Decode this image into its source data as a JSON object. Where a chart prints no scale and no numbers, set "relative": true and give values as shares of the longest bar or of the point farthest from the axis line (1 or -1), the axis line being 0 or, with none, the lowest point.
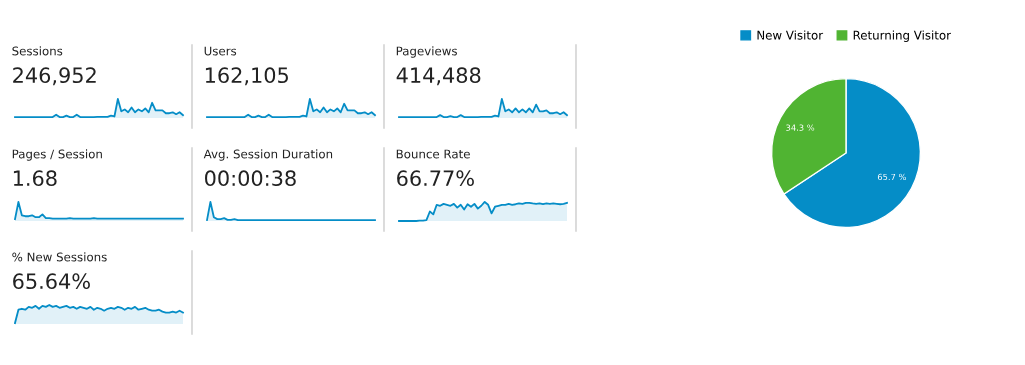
{
  "chart_data": [
    {
      "type": "area",
      "relative": true,
      "title": "Sessions",
      "subtitle": "246,952",
      "color": "#058dc7",
      "categories": [
        null,
        null,
        null,
        null,
        null,
        null,
        null,
        null,
        null,
        null,
        null,
        null,
        null,
        null,
        null,
        null,
        null,
        null,
        null,
        null,
        null,
        null,
        null,
        null,
        null,
        null,
        null,
        null,
        null,
        null,
        null,
        null,
        null,
        null,
        null,
        null,
        null,
        null,
        null,
        null,
        null,
        null,
        null,
        null,
        null,
        null,
        null,
        null,
        null,
        null
      ],
      "values": [
        0.05,
        0.05,
        0.05,
        0.05,
        0.05,
        0.05,
        0.05,
        0.05,
        0.05,
        0.05,
        0.05,
        0.05,
        0.17,
        0.05,
        0.05,
        0.12,
        0.05,
        0.05,
        0.17,
        0.05,
        0.05,
        0.05,
        0.05,
        0.05,
        0.06,
        0.06,
        0.06,
        0.06,
        0.12,
        0.08,
        1.0,
        0.35,
        0.45,
        0.3,
        0.55,
        0.3,
        0.45,
        0.35,
        0.5,
        0.3,
        0.8,
        0.4,
        0.4,
        0.4,
        0.25,
        0.25,
        0.3,
        0.2,
        0.3,
        0.15
      ]
    },
    {
      "type": "area",
      "relative": true,
      "title": "Users",
      "subtitle": "162,105",
      "color": "#058dc7",
      "categories": [
        null,
        null,
        null,
        null,
        null,
        null,
        null,
        null,
        null,
        null,
        null,
        null,
        null,
        null,
        null,
        null,
        null,
        null,
        null,
        null,
        null,
        null,
        null,
        null,
        null,
        null,
        null,
        null,
        null,
        null,
        null,
        null,
        null,
        null,
        null,
        null,
        null,
        null,
        null,
        null,
        null,
        null,
        null,
        null,
        null,
        null,
        null,
        null,
        null,
        null
      ],
      "values": [
        0.05,
        0.05,
        0.05,
        0.05,
        0.05,
        0.05,
        0.05,
        0.05,
        0.05,
        0.05,
        0.05,
        0.05,
        0.17,
        0.05,
        0.05,
        0.12,
        0.05,
        0.05,
        0.17,
        0.05,
        0.05,
        0.05,
        0.05,
        0.05,
        0.06,
        0.06,
        0.06,
        0.06,
        0.12,
        0.08,
        1.0,
        0.35,
        0.45,
        0.3,
        0.55,
        0.3,
        0.45,
        0.35,
        0.5,
        0.3,
        0.75,
        0.4,
        0.4,
        0.4,
        0.25,
        0.25,
        0.3,
        0.2,
        0.3,
        0.15
      ]
    },
    {
      "type": "area",
      "relative": true,
      "title": "Pageviews",
      "subtitle": "414,488",
      "color": "#058dc7",
      "categories": [
        null,
        null,
        null,
        null,
        null,
        null,
        null,
        null,
        null,
        null,
        null,
        null,
        null,
        null,
        null,
        null,
        null,
        null,
        null,
        null,
        null,
        null,
        null,
        null,
        null,
        null,
        null,
        null,
        null,
        null,
        null,
        null,
        null,
        null,
        null,
        null,
        null,
        null,
        null,
        null,
        null,
        null,
        null,
        null,
        null,
        null,
        null,
        null,
        null,
        null
      ],
      "values": [
        0.05,
        0.05,
        0.05,
        0.05,
        0.05,
        0.05,
        0.05,
        0.05,
        0.05,
        0.05,
        0.05,
        0.05,
        0.15,
        0.05,
        0.05,
        0.1,
        0.05,
        0.05,
        0.15,
        0.05,
        0.05,
        0.05,
        0.05,
        0.05,
        0.06,
        0.06,
        0.06,
        0.06,
        0.12,
        0.08,
        1.0,
        0.35,
        0.45,
        0.3,
        0.5,
        0.3,
        0.45,
        0.3,
        0.5,
        0.3,
        0.7,
        0.35,
        0.35,
        0.4,
        0.25,
        0.25,
        0.3,
        0.2,
        0.3,
        0.15
      ]
    },
    {
      "type": "area",
      "relative": true,
      "title": "Pages / Session",
      "subtitle": "1.68",
      "color": "#058dc7",
      "categories": [
        null,
        null,
        null,
        null,
        null,
        null,
        null,
        null,
        null,
        null,
        null,
        null,
        null,
        null,
        null,
        null,
        null,
        null,
        null,
        null,
        null,
        null,
        null,
        null,
        null,
        null,
        null,
        null,
        null,
        null,
        null,
        null,
        null,
        null,
        null,
        null,
        null,
        null,
        null,
        null,
        null,
        null,
        null,
        null,
        null,
        null,
        null,
        null,
        null,
        null
      ],
      "values": [
        0.1,
        1.0,
        0.3,
        0.25,
        0.25,
        0.3,
        0.2,
        0.2,
        0.35,
        0.15,
        0.15,
        0.12,
        0.12,
        0.12,
        0.12,
        0.12,
        0.15,
        0.12,
        0.12,
        0.12,
        0.12,
        0.12,
        0.12,
        0.15,
        0.12,
        0.12,
        0.12,
        0.12,
        0.12,
        0.12,
        0.12,
        0.12,
        0.12,
        0.12,
        0.12,
        0.12,
        0.12,
        0.12,
        0.12,
        0.12,
        0.12,
        0.12,
        0.12,
        0.12,
        0.12,
        0.12,
        0.12,
        0.12,
        0.12,
        0.12
      ]
    },
    {
      "type": "area",
      "relative": true,
      "title": "Avg. Session Duration",
      "subtitle": "00:00:38",
      "color": "#058dc7",
      "categories": [
        null,
        null,
        null,
        null,
        null,
        null,
        null,
        null,
        null,
        null,
        null,
        null,
        null,
        null,
        null,
        null,
        null,
        null,
        null,
        null,
        null,
        null,
        null,
        null,
        null,
        null,
        null,
        null,
        null,
        null,
        null,
        null,
        null,
        null,
        null,
        null,
        null,
        null,
        null,
        null,
        null,
        null,
        null,
        null,
        null,
        null,
        null,
        null,
        null,
        null
      ],
      "values": [
        0.05,
        1.0,
        0.2,
        0.1,
        0.1,
        0.15,
        0.06,
        0.06,
        0.1,
        0.05,
        0.05,
        0.05,
        0.05,
        0.05,
        0.05,
        0.05,
        0.05,
        0.05,
        0.05,
        0.05,
        0.05,
        0.05,
        0.05,
        0.05,
        0.05,
        0.05,
        0.05,
        0.05,
        0.05,
        0.05,
        0.05,
        0.05,
        0.05,
        0.05,
        0.05,
        0.05,
        0.05,
        0.05,
        0.05,
        0.05,
        0.05,
        0.05,
        0.05,
        0.05,
        0.05,
        0.05,
        0.05,
        0.05,
        0.05,
        0.05
      ]
    },
    {
      "type": "area",
      "relative": true,
      "title": "Bounce Rate",
      "subtitle": "66.77%",
      "color": "#058dc7",
      "categories": [
        null,
        null,
        null,
        null,
        null,
        null,
        null,
        null,
        null,
        null,
        null,
        null,
        null,
        null,
        null,
        null,
        null,
        null,
        null,
        null,
        null,
        null,
        null,
        null,
        null,
        null,
        null,
        null,
        null,
        null,
        null,
        null,
        null,
        null,
        null,
        null,
        null,
        null,
        null,
        null,
        null,
        null,
        null,
        null,
        null,
        null,
        null,
        null,
        null,
        null
      ],
      "values": [
        0.0,
        0.0,
        0.0,
        0.0,
        0.0,
        0.0,
        0.02,
        0.02,
        0.05,
        0.5,
        0.35,
        0.85,
        0.8,
        0.9,
        0.85,
        0.8,
        0.9,
        0.7,
        0.85,
        0.6,
        0.88,
        0.75,
        0.9,
        0.65,
        0.8,
        1.0,
        0.85,
        0.4,
        0.75,
        0.8,
        0.85,
        0.85,
        0.9,
        0.85,
        0.88,
        0.92,
        0.9,
        0.95,
        0.95,
        0.92,
        0.9,
        0.92,
        0.88,
        0.92,
        0.9,
        0.92,
        0.9,
        0.88,
        0.9,
        0.95
      ]
    },
    {
      "type": "area",
      "relative": true,
      "title": "% New Sessions",
      "subtitle": "65.64%",
      "color": "#058dc7",
      "categories": [
        null,
        null,
        null,
        null,
        null,
        null,
        null,
        null,
        null,
        null,
        null,
        null,
        null,
        null,
        null,
        null,
        null,
        null,
        null,
        null,
        null,
        null,
        null,
        null,
        null,
        null,
        null,
        null,
        null,
        null,
        null,
        null,
        null,
        null,
        null,
        null,
        null,
        null,
        null,
        null,
        null,
        null,
        null,
        null,
        null,
        null,
        null,
        null,
        null,
        null
      ],
      "values": [
        0.05,
        0.75,
        0.8,
        0.75,
        0.9,
        0.85,
        0.95,
        0.8,
        0.95,
        0.9,
        1.0,
        0.9,
        0.95,
        0.85,
        0.9,
        0.95,
        0.85,
        0.9,
        0.8,
        0.9,
        0.85,
        0.8,
        0.9,
        0.75,
        0.85,
        0.8,
        0.7,
        0.8,
        0.85,
        0.8,
        0.9,
        0.85,
        0.75,
        0.85,
        0.8,
        0.9,
        0.75,
        0.8,
        0.85,
        0.75,
        0.7,
        0.7,
        0.75,
        0.65,
        0.6,
        0.6,
        0.65,
        0.6,
        0.7,
        0.6
      ]
    },
    {
      "type": "pie",
      "categories": [
        "New Visitor",
        "Returning Visitor"
      ],
      "values": [
        65.7,
        34.3
      ],
      "colors": [
        "#058dc7",
        "#50b432"
      ],
      "value_labels": [
        "65.7 %",
        "34.3 %"
      ],
      "legend": "top"
    }
  ]
}
